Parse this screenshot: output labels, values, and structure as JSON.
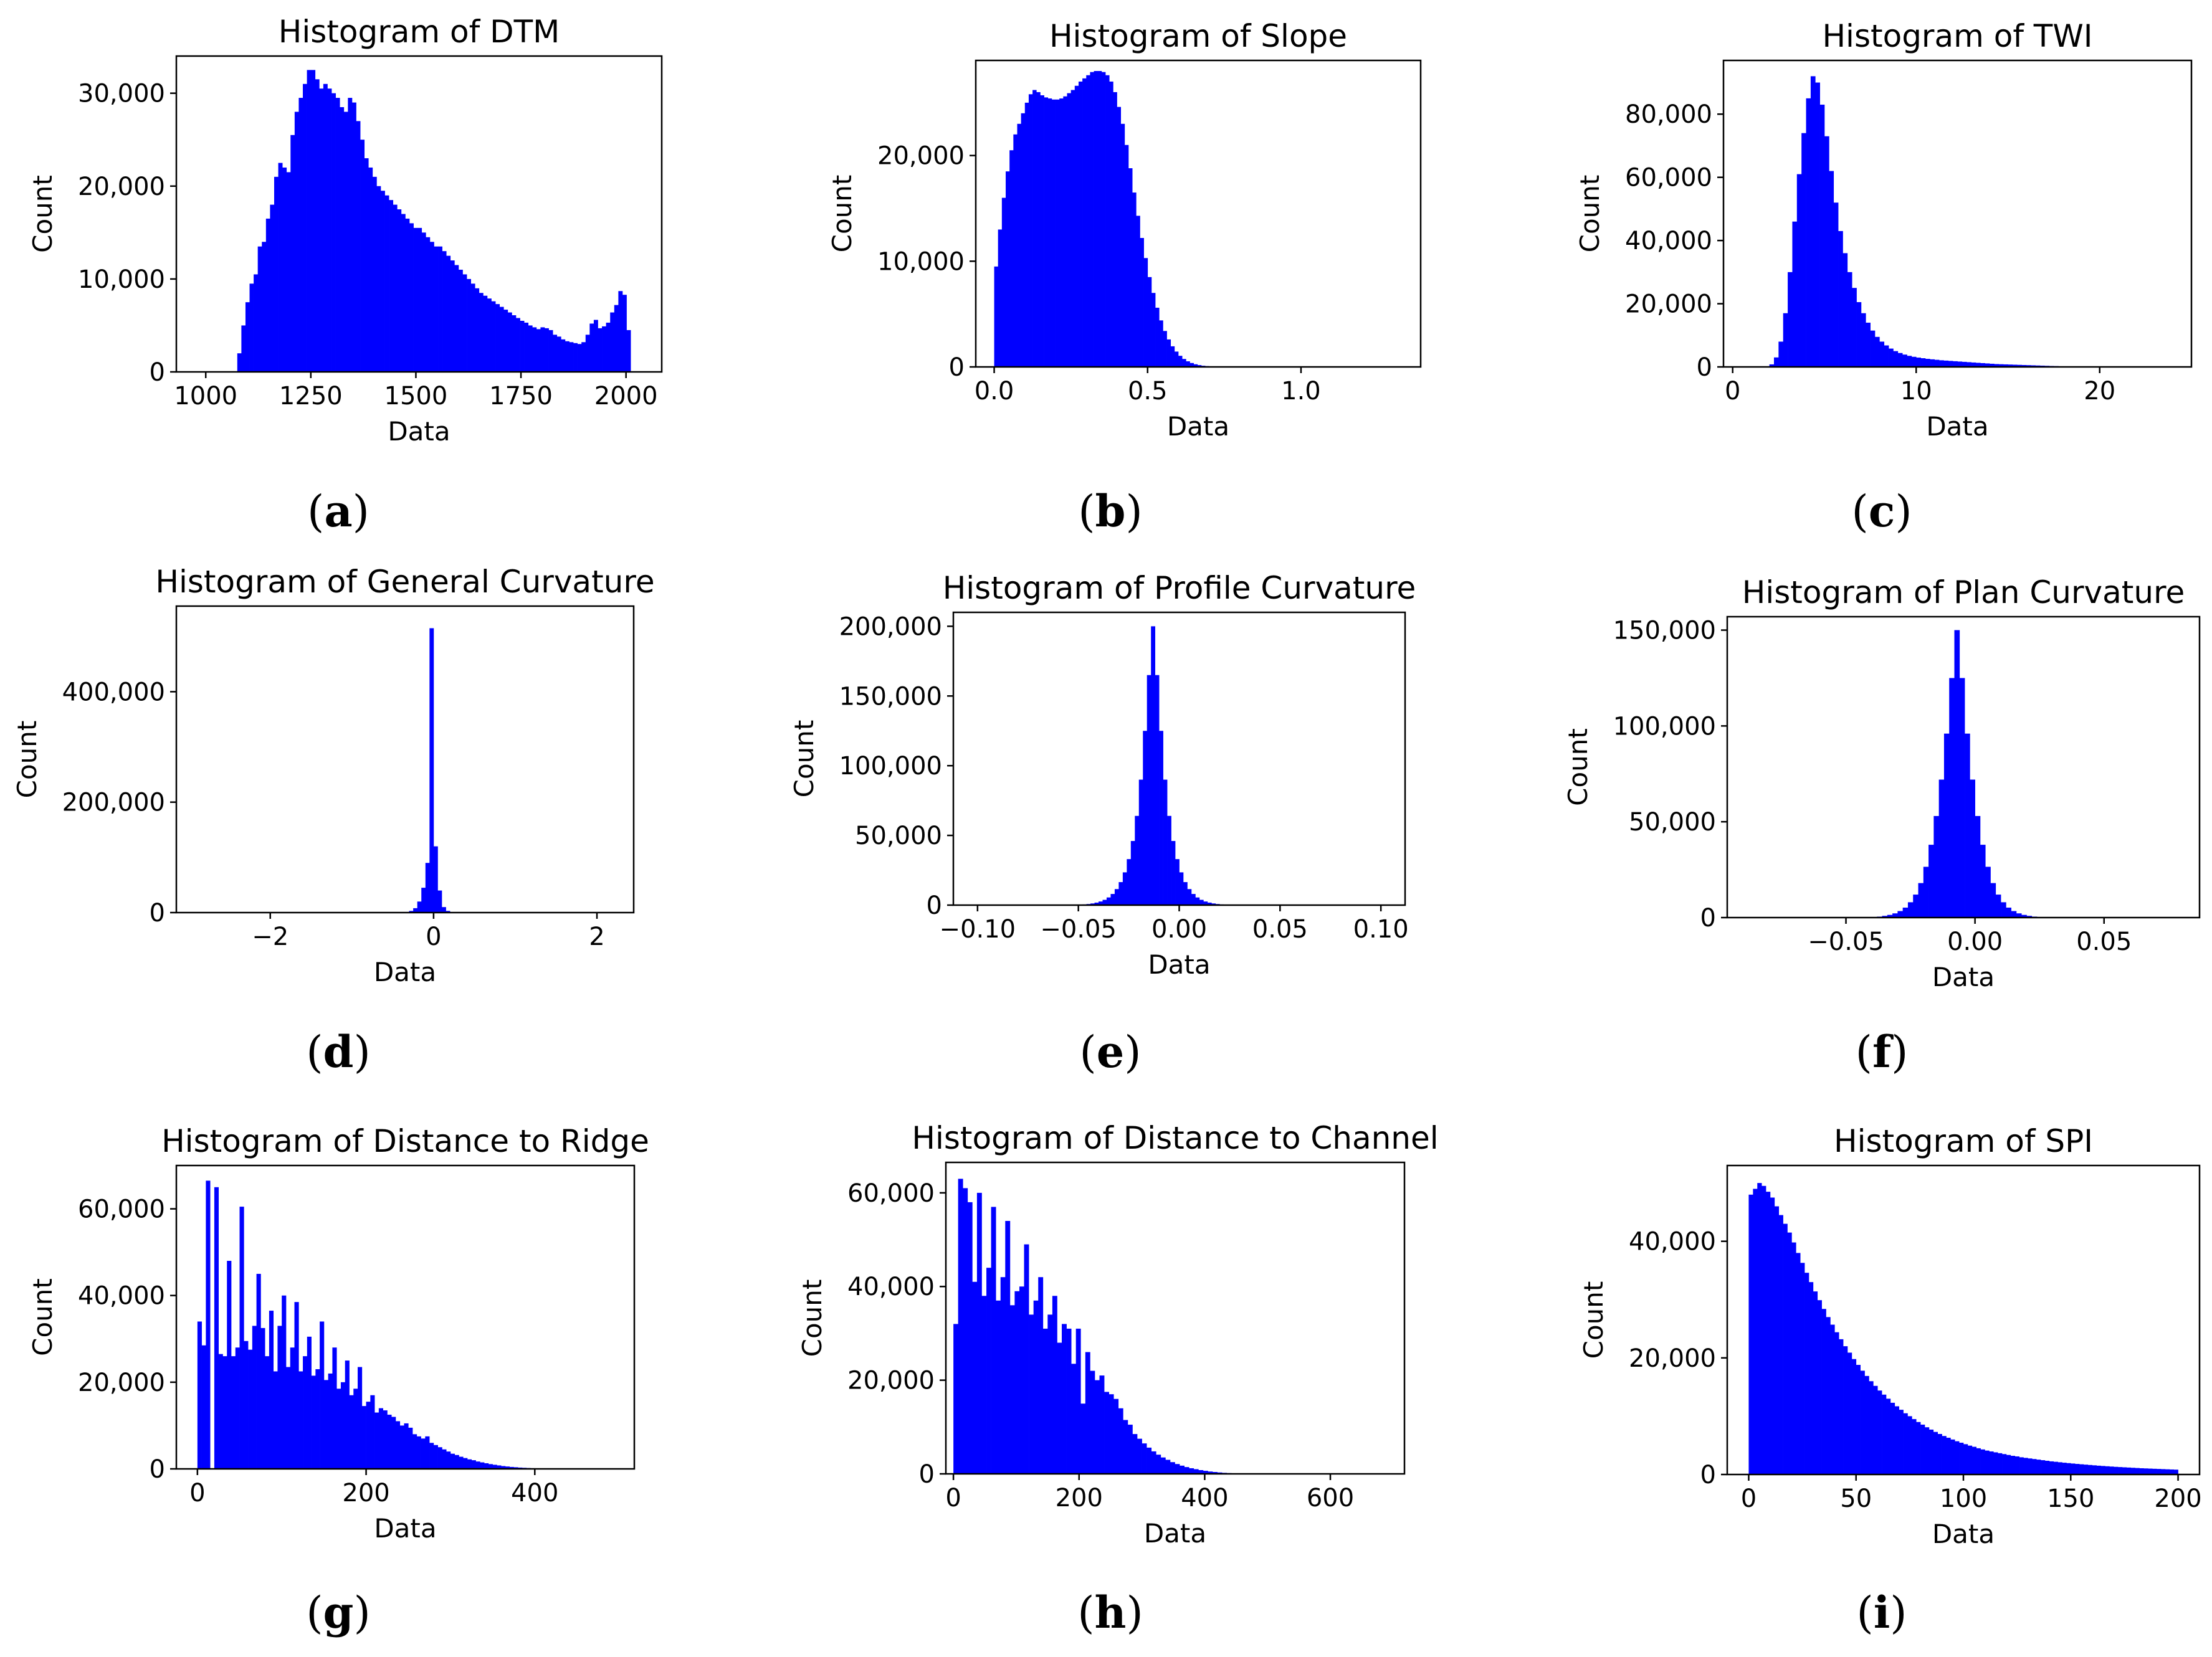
{
  "chart_data": [
    {
      "panel_label": "a",
      "type": "bar",
      "title": "Histogram of DTM",
      "xlabel": "Data",
      "ylabel": "Count",
      "color": "#0000ff",
      "xlim": [
        930,
        2085
      ],
      "ylim": [
        0,
        34000
      ],
      "xticks": [
        {
          "v": 1000,
          "label": "1000"
        },
        {
          "v": 1250,
          "label": "1250"
        },
        {
          "v": 1500,
          "label": "1500"
        },
        {
          "v": 1750,
          "label": "1750"
        },
        {
          "v": 2000,
          "label": "2000"
        }
      ],
      "yticks": [
        {
          "v": 0,
          "label": "0"
        },
        {
          "v": 10000,
          "label": "10,000"
        },
        {
          "v": 20000,
          "label": "20,000"
        },
        {
          "v": 30000,
          "label": "30,000"
        }
      ],
      "bin_start": 1075,
      "bin_width": 9.75,
      "values": [
        2000,
        5000,
        7500,
        9500,
        10500,
        13500,
        14000,
        16500,
        18000,
        21000,
        22500,
        22000,
        21500,
        25500,
        28000,
        29500,
        31000,
        32500,
        32500,
        31500,
        30500,
        31000,
        30500,
        30000,
        29500,
        28500,
        28000,
        29500,
        29000,
        27000,
        25000,
        23000,
        22000,
        21000,
        20000,
        19500,
        19000,
        18500,
        18000,
        17500,
        17000,
        16500,
        16000,
        15500,
        15500,
        15000,
        14500,
        14000,
        13500,
        13500,
        13000,
        12500,
        12000,
        11500,
        11000,
        10500,
        10000,
        9500,
        9000,
        8500,
        8200,
        7900,
        7600,
        7300,
        7000,
        6700,
        6400,
        6100,
        5800,
        5500,
        5300,
        5000,
        4800,
        4600,
        4800,
        4700,
        4500,
        4000,
        3800,
        3500,
        3300,
        3200,
        3100,
        3000,
        3200,
        4000,
        5200,
        5600,
        4700,
        4900,
        5300,
        6400,
        7200,
        8700,
        8300,
        4500
      ]
    },
    {
      "panel_label": "b",
      "type": "bar",
      "title": "Histogram of Slope",
      "xlabel": "Data",
      "ylabel": "Count",
      "color": "#0000ff",
      "xlim": [
        -0.06,
        1.39
      ],
      "ylim": [
        0,
        29000
      ],
      "xticks": [
        {
          "v": 0,
          "label": "0.0"
        },
        {
          "v": 0.5,
          "label": "0.5"
        },
        {
          "v": 1.0,
          "label": "1.0"
        }
      ],
      "yticks": [
        {
          "v": 0,
          "label": "0"
        },
        {
          "v": 10000,
          "label": "10,000"
        },
        {
          "v": 20000,
          "label": "20,000"
        }
      ],
      "bin_start": 0,
      "bin_width": 0.0125,
      "values": [
        9500,
        13000,
        16000,
        18500,
        20500,
        22000,
        23000,
        24000,
        25000,
        25800,
        26200,
        26000,
        25700,
        25500,
        25400,
        25300,
        25300,
        25400,
        25600,
        25900,
        26200,
        26600,
        27000,
        27300,
        27600,
        27900,
        28000,
        28000,
        27900,
        27600,
        27000,
        26000,
        24600,
        23000,
        21000,
        18800,
        16500,
        14300,
        12200,
        10300,
        8500,
        7000,
        5600,
        4400,
        3400,
        2600,
        1950,
        1450,
        1050,
        750,
        530,
        370,
        250,
        170,
        110,
        75,
        50,
        30,
        20,
        15,
        10,
        8,
        5,
        4,
        3
      ]
    },
    {
      "panel_label": "c",
      "type": "bar",
      "title": "Histogram of TWI",
      "xlabel": "Data",
      "ylabel": "Count",
      "color": "#0000ff",
      "xlim": [
        -0.5,
        25
      ],
      "ylim": [
        0,
        97000
      ],
      "xticks": [
        {
          "v": 0,
          "label": "0"
        },
        {
          "v": 10,
          "label": "10"
        },
        {
          "v": 20,
          "label": "20"
        }
      ],
      "yticks": [
        {
          "v": 0,
          "label": "0"
        },
        {
          "v": 20000,
          "label": "20,000"
        },
        {
          "v": 40000,
          "label": "40,000"
        },
        {
          "v": 60000,
          "label": "60,000"
        },
        {
          "v": 80000,
          "label": "80,000"
        }
      ],
      "bin_start": 2.0,
      "bin_width": 0.25,
      "values": [
        800,
        3000,
        8000,
        17000,
        30000,
        46000,
        61000,
        74000,
        85000,
        92000,
        90000,
        83000,
        73000,
        62000,
        52000,
        43000,
        36000,
        30000,
        25000,
        20500,
        17000,
        14000,
        11500,
        9500,
        8000,
        6800,
        5800,
        5000,
        4400,
        3900,
        3500,
        3200,
        2950,
        2750,
        2550,
        2400,
        2250,
        2100,
        2000,
        1900,
        1800,
        1700,
        1600,
        1500,
        1400,
        1300,
        1200,
        1100,
        1000,
        900,
        850,
        800,
        750,
        700,
        650,
        600,
        550,
        500,
        450,
        400,
        350,
        300,
        250,
        200,
        150
      ]
    },
    {
      "panel_label": "d",
      "type": "bar",
      "title": "Histogram of General Curvature",
      "xlabel": "Data",
      "ylabel": "Count",
      "color": "#0000ff",
      "xlim": [
        -3.15,
        2.45
      ],
      "ylim": [
        0,
        555000
      ],
      "xticks": [
        {
          "v": -2,
          "label": "−2"
        },
        {
          "v": 0,
          "label": "0"
        },
        {
          "v": 2,
          "label": "2"
        }
      ],
      "yticks": [
        {
          "v": 0,
          "label": "0"
        },
        {
          "v": 200000,
          "label": "200,000"
        },
        {
          "v": 400000,
          "label": "400,000"
        }
      ],
      "bin_start": -0.3,
      "bin_width": 0.05,
      "values": [
        3000,
        8000,
        20000,
        45000,
        90000,
        515000,
        120000,
        40000,
        10000,
        3000,
        1000,
        500
      ]
    },
    {
      "panel_label": "e",
      "type": "bar",
      "title": "Histogram of Profile Curvature",
      "xlabel": "Data",
      "ylabel": "Count",
      "color": "#0000ff",
      "xlim": [
        -0.112,
        0.112
      ],
      "ylim": [
        0,
        210000
      ],
      "xticks": [
        {
          "v": -0.1,
          "label": "−0.10"
        },
        {
          "v": -0.05,
          "label": "−0.05"
        },
        {
          "v": 0,
          "label": "0.00"
        },
        {
          "v": 0.05,
          "label": "0.05"
        },
        {
          "v": 0.1,
          "label": "0.10"
        }
      ],
      "yticks": [
        {
          "v": 0,
          "label": "0"
        },
        {
          "v": 50000,
          "label": "50,000"
        },
        {
          "v": 100000,
          "label": "100,000"
        },
        {
          "v": 150000,
          "label": "150,000"
        },
        {
          "v": 200000,
          "label": "200,000"
        }
      ],
      "bin_start": -0.05,
      "bin_width": 0.002,
      "values": [
        300,
        500,
        800,
        1200,
        1800,
        2600,
        3800,
        5500,
        8000,
        11500,
        16500,
        23500,
        33000,
        46000,
        64000,
        90000,
        125000,
        165000,
        200000,
        165000,
        125000,
        90000,
        64000,
        46000,
        33000,
        23500,
        16500,
        11500,
        8000,
        5500,
        3800,
        2600,
        1800,
        1200,
        800,
        500,
        300,
        200,
        100,
        50
      ]
    },
    {
      "panel_label": "f",
      "type": "bar",
      "title": "Histogram of Plan Curvature",
      "xlabel": "Data",
      "ylabel": "Count",
      "color": "#0000ff",
      "xlim": [
        -0.096,
        0.087
      ],
      "ylim": [
        0,
        157000
      ],
      "xticks": [
        {
          "v": -0.05,
          "label": "−0.05"
        },
        {
          "v": 0,
          "label": "0.00"
        },
        {
          "v": 0.05,
          "label": "0.05"
        }
      ],
      "yticks": [
        {
          "v": 0,
          "label": "0"
        },
        {
          "v": 50000,
          "label": "50,000"
        },
        {
          "v": 100000,
          "label": "100,000"
        },
        {
          "v": 150000,
          "label": "150,000"
        }
      ],
      "bin_start": -0.04,
      "bin_width": 0.002,
      "values": [
        300,
        500,
        900,
        1400,
        2200,
        3400,
        5200,
        8000,
        12000,
        18000,
        26500,
        38000,
        53000,
        72000,
        96000,
        125000,
        150000,
        125000,
        96000,
        72000,
        53000,
        38000,
        26500,
        18000,
        12000,
        8000,
        5200,
        3400,
        2200,
        1400,
        900,
        500,
        300,
        200,
        100,
        50
      ]
    },
    {
      "panel_label": "g",
      "type": "bar",
      "title": "Histogram of Distance to Ridge",
      "xlabel": "Data",
      "ylabel": "Count",
      "color": "#0000ff",
      "xlim": [
        -25,
        518
      ],
      "ylim": [
        0,
        70000
      ],
      "xticks": [
        {
          "v": 0,
          "label": "0"
        },
        {
          "v": 200,
          "label": "200"
        },
        {
          "v": 400,
          "label": "400"
        }
      ],
      "yticks": [
        {
          "v": 0,
          "label": "0"
        },
        {
          "v": 20000,
          "label": "20,000"
        },
        {
          "v": 40000,
          "label": "40,000"
        },
        {
          "v": 60000,
          "label": "60,000"
        }
      ],
      "bin_start": 0,
      "bin_width": 5,
      "values": [
        34000,
        28500,
        66500,
        0,
        65000,
        26500,
        26000,
        48000,
        26000,
        28000,
        60500,
        29500,
        27500,
        33000,
        45000,
        32500,
        26000,
        36500,
        22500,
        33000,
        40000,
        23500,
        28000,
        38500,
        22500,
        26000,
        30500,
        21500,
        23000,
        34000,
        20500,
        22000,
        28000,
        18500,
        20000,
        25000,
        17000,
        18500,
        23500,
        14500,
        15500,
        17000,
        13000,
        14000,
        13500,
        12500,
        12000,
        11000,
        10000,
        10500,
        9500,
        8000,
        7500,
        7000,
        7500,
        6000,
        5500,
        5000,
        4500,
        4000,
        3500,
        3200,
        2800,
        2500,
        2200,
        2000,
        1700,
        1500,
        1300,
        1100,
        950,
        800,
        650,
        550,
        450,
        380,
        300,
        250,
        200,
        150
      ]
    },
    {
      "panel_label": "h",
      "type": "bar",
      "title": "Histogram of Distance to Channel",
      "xlabel": "Data",
      "ylabel": "Count",
      "color": "#0000ff",
      "xlim": [
        -12,
        718
      ],
      "ylim": [
        0,
        66500
      ],
      "xticks": [
        {
          "v": 0,
          "label": "0"
        },
        {
          "v": 200,
          "label": "200"
        },
        {
          "v": 400,
          "label": "400"
        },
        {
          "v": 600,
          "label": "600"
        }
      ],
      "yticks": [
        {
          "v": 0,
          "label": "0"
        },
        {
          "v": 20000,
          "label": "20,000"
        },
        {
          "v": 40000,
          "label": "40,000"
        },
        {
          "v": 60000,
          "label": "60,000"
        }
      ],
      "bin_start": 0,
      "bin_width": 7.5,
      "values": [
        32000,
        63000,
        61000,
        58000,
        41000,
        60000,
        38000,
        44000,
        57000,
        37000,
        42000,
        54000,
        36000,
        39000,
        40000,
        49000,
        34000,
        37000,
        42000,
        31000,
        34000,
        38000,
        28000,
        32000,
        31000,
        23500,
        31000,
        15000,
        26000,
        22000,
        20000,
        21000,
        17500,
        17000,
        16000,
        14000,
        11500,
        10500,
        8500,
        7500,
        6500,
        5600,
        4800,
        4100,
        3500,
        3000,
        2500,
        2100,
        1750,
        1450,
        1200,
        1000,
        800,
        650,
        500,
        400,
        300,
        220,
        160,
        110,
        80,
        55,
        40,
        25,
        15
      ]
    },
    {
      "panel_label": "i",
      "type": "bar",
      "title": "Histogram of SPI",
      "xlabel": "Data",
      "ylabel": "Count",
      "color": "#0000ff",
      "xlim": [
        -10,
        210
      ],
      "ylim": [
        0,
        53000
      ],
      "xticks": [
        {
          "v": 0,
          "label": "0"
        },
        {
          "v": 50,
          "label": "50"
        },
        {
          "v": 100,
          "label": "100"
        },
        {
          "v": 150,
          "label": "150"
        },
        {
          "v": 200,
          "label": "200"
        }
      ],
      "yticks": [
        {
          "v": 0,
          "label": "0"
        },
        {
          "v": 20000,
          "label": "20,000"
        },
        {
          "v": 40000,
          "label": "40,000"
        }
      ],
      "bin_start": 0,
      "bin_width": 2,
      "values": [
        48000,
        49000,
        50000,
        49500,
        48500,
        47500,
        46000,
        44500,
        43000,
        41500,
        39800,
        38000,
        36300,
        34600,
        33000,
        31400,
        29900,
        28400,
        27000,
        25700,
        24400,
        23200,
        22000,
        20900,
        19800,
        18800,
        17800,
        16900,
        16000,
        15200,
        14400,
        13700,
        13000,
        12300,
        11700,
        11100,
        10500,
        10000,
        9500,
        9000,
        8550,
        8100,
        7700,
        7300,
        6950,
        6600,
        6300,
        6000,
        5700,
        5450,
        5200,
        4950,
        4750,
        4500,
        4300,
        4100,
        3950,
        3800,
        3650,
        3500,
        3350,
        3200,
        3100,
        2950,
        2850,
        2750,
        2650,
        2550,
        2450,
        2350,
        2250,
        2180,
        2100,
        2020,
        1950,
        1880,
        1810,
        1750,
        1690,
        1630,
        1570,
        1510,
        1460,
        1410,
        1360,
        1310,
        1270,
        1230,
        1190,
        1150,
        1110,
        1070,
        1040,
        1010,
        980,
        950,
        920,
        890,
        860,
        830
      ]
    }
  ]
}
